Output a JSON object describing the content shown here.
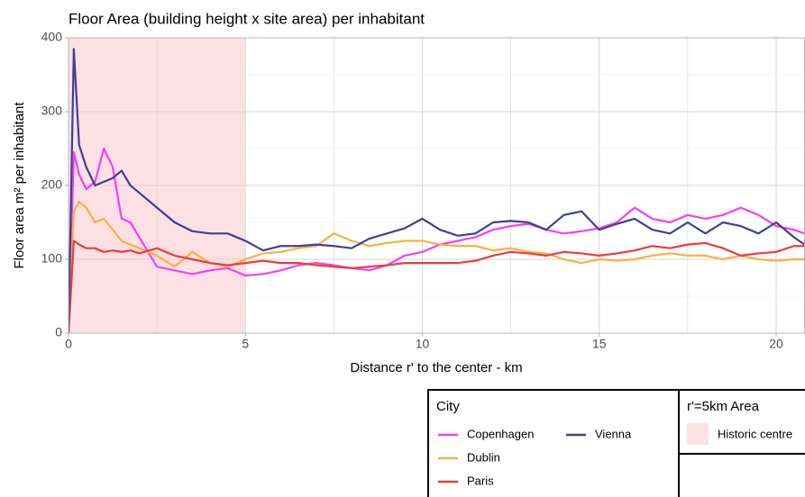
{
  "chart_data": {
    "type": "line",
    "title": "Floor Area (building height x site area) per inhabitant",
    "xlabel": "Distance r' to the center - km",
    "ylabel": "Floor area m² per inhabitant",
    "x": [
      0,
      0.15,
      0.3,
      0.5,
      0.75,
      1.0,
      1.25,
      1.5,
      1.75,
      2.0,
      2.5,
      3,
      3.5,
      4,
      4.5,
      5,
      5.5,
      6,
      6.5,
      7,
      7.5,
      8,
      8.5,
      9,
      9.5,
      10,
      10.5,
      11,
      11.5,
      12,
      12.5,
      13,
      13.5,
      14,
      14.5,
      15,
      15.5,
      16,
      16.5,
      17,
      17.5,
      18,
      18.5,
      19,
      19.5,
      20,
      20.5,
      20.8
    ],
    "series": [
      {
        "name": "Copenhagen",
        "color": "#f53ff5",
        "values": [
          0,
          245,
          215,
          195,
          205,
          250,
          225,
          155,
          150,
          130,
          90,
          85,
          80,
          85,
          88,
          78,
          80,
          85,
          92,
          95,
          92,
          88,
          85,
          92,
          105,
          110,
          120,
          125,
          130,
          140,
          145,
          148,
          140,
          135,
          138,
          142,
          150,
          170,
          155,
          150,
          160,
          155,
          160,
          170,
          160,
          145,
          140,
          135
        ]
      },
      {
        "name": "Dublin",
        "color": "#fbb040",
        "values": [
          0,
          165,
          178,
          170,
          150,
          155,
          140,
          125,
          120,
          115,
          105,
          90,
          110,
          95,
          90,
          100,
          108,
          110,
          115,
          118,
          135,
          125,
          118,
          122,
          125,
          125,
          120,
          118,
          118,
          112,
          115,
          110,
          108,
          100,
          95,
          100,
          98,
          100,
          105,
          108,
          105,
          105,
          100,
          105,
          100,
          98,
          100,
          100
        ]
      },
      {
        "name": "Paris",
        "color": "#ee3b3b",
        "values": [
          0,
          125,
          120,
          115,
          115,
          110,
          112,
          110,
          112,
          108,
          115,
          105,
          100,
          95,
          92,
          95,
          98,
          95,
          95,
          92,
          90,
          88,
          90,
          92,
          95,
          95,
          95,
          95,
          98,
          105,
          110,
          108,
          105,
          110,
          108,
          105,
          108,
          112,
          118,
          115,
          120,
          122,
          115,
          105,
          108,
          110,
          118,
          118
        ]
      },
      {
        "name": "Vienna",
        "color": "#3f3f9a",
        "values": [
          0,
          385,
          255,
          225,
          200,
          205,
          210,
          220,
          200,
          190,
          170,
          150,
          138,
          135,
          135,
          125,
          112,
          118,
          118,
          120,
          118,
          115,
          128,
          135,
          142,
          155,
          140,
          132,
          135,
          150,
          152,
          150,
          140,
          160,
          165,
          140,
          148,
          155,
          140,
          135,
          150,
          135,
          150,
          145,
          135,
          150,
          130,
          120
        ]
      }
    ],
    "xlim": [
      0,
      20.8
    ],
    "ylim": [
      0,
      400
    ],
    "xticks": [
      0,
      5,
      10,
      15,
      20
    ],
    "yticks": [
      0,
      100,
      200,
      300,
      400
    ],
    "grid": true,
    "legend_title": "City",
    "shaded_region": {
      "legend_title": "r'=5km Area",
      "label": "Historic centre",
      "xlim": [
        0,
        5
      ],
      "color": "#fde0e3"
    }
  }
}
